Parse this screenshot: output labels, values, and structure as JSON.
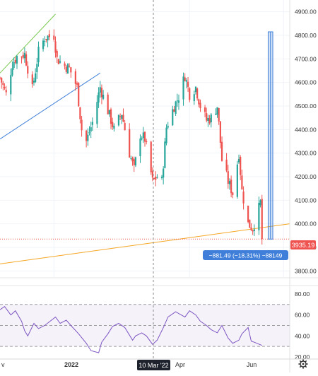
{
  "price_axis": {
    "labels": [
      "4900.00",
      "4800.00",
      "4700.00",
      "4600.00",
      "4500.00",
      "4400.00",
      "4300.00",
      "4200.00",
      "4100.00",
      "4000.00",
      "3900.00",
      "3800.00"
    ],
    "current_price": "3935.19"
  },
  "rsi_axis": {
    "labels": [
      "80.00",
      "60.00",
      "40.00",
      "20.00"
    ]
  },
  "time_axis": {
    "labels": [
      "v",
      "2022",
      "Apr",
      "Jun"
    ],
    "crosshair_date": "10 Mar '22"
  },
  "measure_tool": {
    "label": "−881.49 (−18.31%) −88149"
  },
  "settings": {
    "icon": "gear-icon"
  },
  "colors": {
    "bull": "#26a69a",
    "bear": "#ef5350",
    "fan_green": "#79c94f",
    "fan_blue": "#3f7fd9",
    "orange": "#f5a623",
    "rsi": "#7e57c2",
    "measure": "#3f7fd9",
    "price_tag": "#ef5350"
  },
  "chart_data": [
    {
      "type": "candlestick",
      "title": "",
      "y_axis": {
        "min": 3750,
        "max": 4950,
        "ticks": [
          4900,
          4800,
          4700,
          4600,
          4500,
          4400,
          4300,
          4200,
          4100,
          4000,
          3900,
          3800
        ]
      },
      "x_range": {
        "start": "2021-11-29",
        "end": "2022-06-05"
      },
      "last_price": 3935.19,
      "close_path": [
        [
          "2021-11-29",
          4620
        ],
        [
          "2021-12-03",
          4550
        ],
        [
          "2021-12-07",
          4680
        ],
        [
          "2021-12-10",
          4710
        ],
        [
          "2021-12-15",
          4720
        ],
        [
          "2021-12-20",
          4570
        ],
        [
          "2021-12-24",
          4730
        ],
        [
          "2021-12-28",
          4790
        ],
        [
          "2022-01-03",
          4800
        ],
        [
          "2022-01-05",
          4700
        ],
        [
          "2022-01-10",
          4670
        ],
        [
          "2022-01-13",
          4660
        ],
        [
          "2022-01-18",
          4580
        ],
        [
          "2022-01-21",
          4400
        ],
        [
          "2022-01-24",
          4350
        ],
        [
          "2022-01-28",
          4430
        ],
        [
          "2022-02-02",
          4580
        ],
        [
          "2022-02-07",
          4480
        ],
        [
          "2022-02-11",
          4400
        ],
        [
          "2022-02-16",
          4470
        ],
        [
          "2022-02-21",
          4300
        ],
        [
          "2022-02-24",
          4230
        ],
        [
          "2022-02-28",
          4380
        ],
        [
          "2022-03-03",
          4360
        ],
        [
          "2022-03-08",
          4180
        ],
        [
          "2022-03-11",
          4200
        ],
        [
          "2022-03-14",
          4180
        ],
        [
          "2022-03-17",
          4410
        ],
        [
          "2022-03-22",
          4500
        ],
        [
          "2022-03-25",
          4540
        ],
        [
          "2022-03-29",
          4630
        ],
        [
          "2022-04-01",
          4550
        ],
        [
          "2022-04-05",
          4580
        ],
        [
          "2022-04-08",
          4500
        ],
        [
          "2022-04-12",
          4440
        ],
        [
          "2022-04-15",
          4450
        ],
        [
          "2022-04-19",
          4500
        ],
        [
          "2022-04-22",
          4270
        ],
        [
          "2022-04-26",
          4180
        ],
        [
          "2022-04-29",
          4130
        ],
        [
          "2022-05-03",
          4300
        ],
        [
          "2022-05-05",
          4140
        ],
        [
          "2022-05-09",
          4000
        ],
        [
          "2022-05-12",
          3980
        ],
        [
          "2022-05-14",
          4020
        ],
        [
          "2022-05-17",
          4090
        ],
        [
          "2022-05-18",
          3935
        ]
      ],
      "trendlines": [
        {
          "color": "green",
          "from": [
            "2021-11-29",
            4640
          ],
          "to": [
            "2022-01-04",
            4890
          ]
        },
        {
          "color": "blue",
          "from": [
            "2021-11-29",
            4360
          ],
          "to": [
            "2022-02-02",
            4640
          ]
        },
        {
          "color": "orange",
          "from": [
            "2021-11-29",
            3830
          ],
          "to": [
            "2022-06-05",
            4000
          ]
        }
      ],
      "measure": {
        "from": [
          "2022-05-22",
          4815
        ],
        "to": [
          "2022-05-25",
          3935
        ]
      }
    },
    {
      "type": "line",
      "title": "",
      "name": "",
      "y_axis": {
        "min": 18,
        "max": 88,
        "ticks": [
          80,
          60,
          40,
          20
        ]
      },
      "band": [
        30,
        70
      ],
      "x_range": {
        "start": "2021-11-29",
        "end": "2022-06-05"
      },
      "points": [
        [
          "2021-11-29",
          65
        ],
        [
          "2021-12-02",
          68
        ],
        [
          "2021-12-06",
          60
        ],
        [
          "2021-12-09",
          64
        ],
        [
          "2021-12-13",
          54
        ],
        [
          "2021-12-15",
          45
        ],
        [
          "2021-12-17",
          40
        ],
        [
          "2021-12-21",
          52
        ],
        [
          "2021-12-24",
          47
        ],
        [
          "2021-12-28",
          50
        ],
        [
          "2022-01-04",
          58
        ],
        [
          "2022-01-07",
          52
        ],
        [
          "2022-01-11",
          55
        ],
        [
          "2022-01-14",
          50
        ],
        [
          "2022-01-19",
          42
        ],
        [
          "2022-01-24",
          33
        ],
        [
          "2022-01-27",
          26
        ],
        [
          "2022-02-01",
          24
        ],
        [
          "2022-02-03",
          34
        ],
        [
          "2022-02-07",
          42
        ],
        [
          "2022-02-10",
          49
        ],
        [
          "2022-02-14",
          52
        ],
        [
          "2022-02-18",
          48
        ],
        [
          "2022-02-23",
          36
        ],
        [
          "2022-02-25",
          40
        ],
        [
          "2022-03-01",
          43
        ],
        [
          "2022-03-04",
          40
        ],
        [
          "2022-03-08",
          32
        ],
        [
          "2022-03-11",
          36
        ],
        [
          "2022-03-15",
          48
        ],
        [
          "2022-03-18",
          58
        ],
        [
          "2022-03-23",
          63
        ],
        [
          "2022-03-29",
          58
        ],
        [
          "2022-04-01",
          64
        ],
        [
          "2022-04-05",
          60
        ],
        [
          "2022-04-08",
          54
        ],
        [
          "2022-04-12",
          50
        ],
        [
          "2022-04-15",
          46
        ],
        [
          "2022-04-19",
          43
        ],
        [
          "2022-04-22",
          50
        ],
        [
          "2022-04-26",
          38
        ],
        [
          "2022-04-29",
          33
        ],
        [
          "2022-05-03",
          36
        ],
        [
          "2022-05-05",
          42
        ],
        [
          "2022-05-09",
          48
        ],
        [
          "2022-05-11",
          35
        ],
        [
          "2022-05-13",
          34
        ],
        [
          "2022-05-18",
          31
        ]
      ]
    }
  ]
}
